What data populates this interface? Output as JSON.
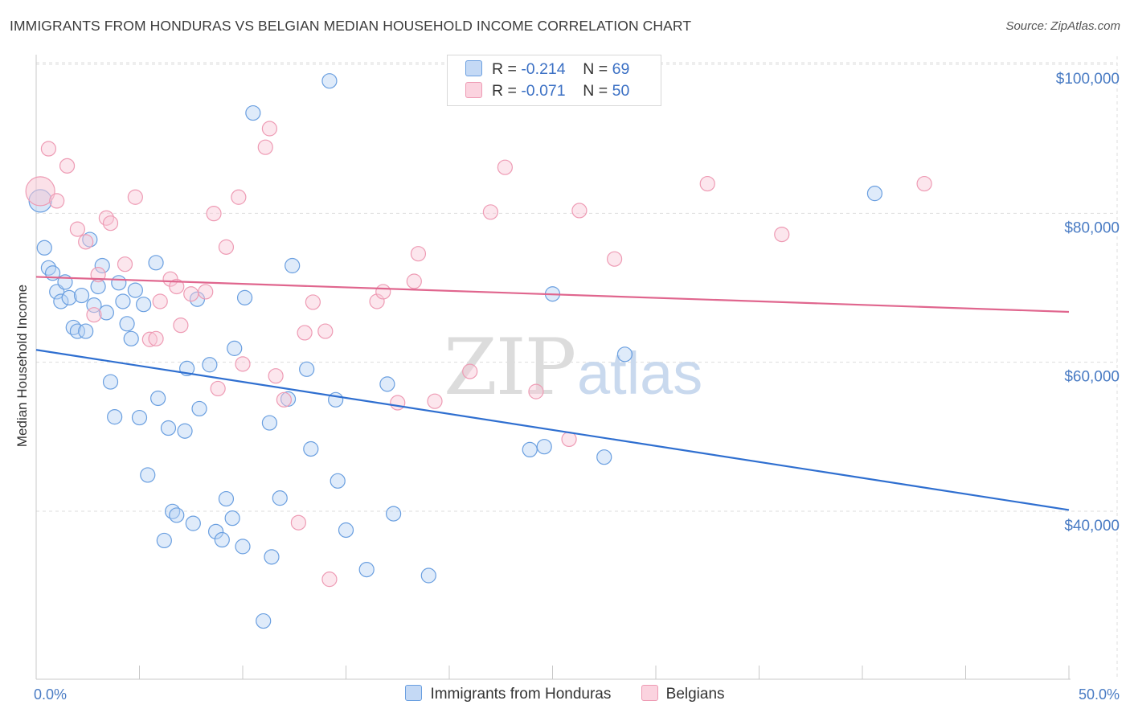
{
  "title": "IMMIGRANTS FROM HONDURAS VS BELGIAN MEDIAN HOUSEHOLD INCOME CORRELATION CHART",
  "source": "Source: ZipAtlas.com",
  "watermark": {
    "zip": "ZIP",
    "atlas": "atlas"
  },
  "legend_top": {
    "r_label": "R =",
    "n_label": "N =",
    "rows": [
      {
        "r": "-0.214",
        "n": "69"
      },
      {
        "r": "-0.071",
        "n": "50"
      }
    ]
  },
  "chart_data": {
    "type": "scatter",
    "title": "IMMIGRANTS FROM HONDURAS VS BELGIAN MEDIAN HOUSEHOLD INCOME CORRELATION CHART",
    "xlabel": "",
    "ylabel": "Median Household Income",
    "xlim": [
      0,
      50
    ],
    "ylim": [
      22000,
      103000
    ],
    "x_tick_labels": [
      "0.0%",
      "50.0%"
    ],
    "y_ticks": [
      40000,
      60000,
      80000,
      100000
    ],
    "y_tick_labels": [
      "$40,000",
      "$60,000",
      "$80,000",
      "$100,000"
    ],
    "grid": true,
    "legend_placement": "bottom",
    "series": [
      {
        "name": "Immigrants from Honduras",
        "color": "#6a9fe0",
        "fill": "#b8d2f3",
        "trend": {
          "x": [
            0,
            50
          ],
          "y": [
            63500,
            42000
          ],
          "color": "#2f6fd0"
        },
        "points": [
          [
            0.2,
            83500
          ],
          [
            0.4,
            77200
          ],
          [
            0.6,
            74500
          ],
          [
            0.8,
            73800
          ],
          [
            1.0,
            71300
          ],
          [
            1.2,
            70000
          ],
          [
            1.4,
            72600
          ],
          [
            1.6,
            70500
          ],
          [
            1.8,
            66500
          ],
          [
            2.0,
            66000
          ],
          [
            2.2,
            70800
          ],
          [
            2.4,
            66000
          ],
          [
            2.6,
            78300
          ],
          [
            2.8,
            69500
          ],
          [
            3.0,
            72000
          ],
          [
            3.2,
            74800
          ],
          [
            3.4,
            68500
          ],
          [
            3.6,
            59200
          ],
          [
            3.8,
            54500
          ],
          [
            4.0,
            72500
          ],
          [
            4.2,
            70000
          ],
          [
            4.4,
            67000
          ],
          [
            4.6,
            65000
          ],
          [
            4.8,
            71500
          ],
          [
            5.0,
            54400
          ],
          [
            5.2,
            69600
          ],
          [
            5.4,
            46700
          ],
          [
            5.8,
            75200
          ],
          [
            5.9,
            57000
          ],
          [
            6.2,
            37900
          ],
          [
            6.4,
            53000
          ],
          [
            6.6,
            41800
          ],
          [
            6.8,
            41300
          ],
          [
            7.2,
            52600
          ],
          [
            7.3,
            61000
          ],
          [
            7.6,
            40200
          ],
          [
            7.8,
            70300
          ],
          [
            7.9,
            55600
          ],
          [
            8.4,
            61500
          ],
          [
            8.7,
            39100
          ],
          [
            9.0,
            38000
          ],
          [
            9.2,
            43500
          ],
          [
            9.5,
            40900
          ],
          [
            9.6,
            63700
          ],
          [
            10.0,
            37100
          ],
          [
            10.1,
            70500
          ],
          [
            10.5,
            95300
          ],
          [
            11.0,
            27100
          ],
          [
            11.3,
            53700
          ],
          [
            11.4,
            35700
          ],
          [
            11.8,
            43600
          ],
          [
            12.2,
            56900
          ],
          [
            12.4,
            74800
          ],
          [
            13.1,
            60900
          ],
          [
            13.3,
            50200
          ],
          [
            14.5,
            56800
          ],
          [
            14.6,
            45900
          ],
          [
            15.0,
            39300
          ],
          [
            14.2,
            99600
          ],
          [
            16.0,
            34000
          ],
          [
            17.0,
            58900
          ],
          [
            17.3,
            41500
          ],
          [
            19.0,
            33200
          ],
          [
            23.9,
            50100
          ],
          [
            24.6,
            50500
          ],
          [
            25.0,
            71000
          ],
          [
            27.5,
            49100
          ],
          [
            28.5,
            62900
          ],
          [
            40.6,
            84500
          ]
        ]
      },
      {
        "name": "Belgians",
        "color": "#ee9bb4",
        "fill": "#f8c8d6",
        "trend": {
          "x": [
            0,
            50
          ],
          "y": [
            73300,
            68600
          ],
          "color": "#e0668e"
        },
        "points": [
          [
            0.2,
            84800
          ],
          [
            0.6,
            90500
          ],
          [
            1.0,
            83500
          ],
          [
            1.5,
            88200
          ],
          [
            2.0,
            79700
          ],
          [
            2.4,
            78000
          ],
          [
            2.8,
            68200
          ],
          [
            3.0,
            73600
          ],
          [
            3.4,
            81200
          ],
          [
            3.6,
            80500
          ],
          [
            4.3,
            75000
          ],
          [
            4.8,
            84000
          ],
          [
            5.5,
            64900
          ],
          [
            5.8,
            65000
          ],
          [
            6.0,
            70000
          ],
          [
            6.5,
            73000
          ],
          [
            6.8,
            72000
          ],
          [
            7.0,
            66800
          ],
          [
            7.5,
            71000
          ],
          [
            8.2,
            71300
          ],
          [
            8.6,
            81800
          ],
          [
            8.8,
            58300
          ],
          [
            9.2,
            77300
          ],
          [
            9.8,
            84000
          ],
          [
            10.0,
            61600
          ],
          [
            11.1,
            90700
          ],
          [
            11.3,
            93200
          ],
          [
            11.6,
            60000
          ],
          [
            12.0,
            56800
          ],
          [
            12.7,
            40300
          ],
          [
            13.0,
            65800
          ],
          [
            13.4,
            69900
          ],
          [
            14.0,
            66000
          ],
          [
            14.2,
            32700
          ],
          [
            16.5,
            70000
          ],
          [
            16.8,
            71300
          ],
          [
            17.5,
            56400
          ],
          [
            18.3,
            72700
          ],
          [
            18.5,
            76400
          ],
          [
            19.3,
            56600
          ],
          [
            21.0,
            60600
          ],
          [
            22.0,
            82000
          ],
          [
            22.7,
            88000
          ],
          [
            24.2,
            57900
          ],
          [
            25.8,
            51500
          ],
          [
            26.3,
            82200
          ],
          [
            28.0,
            75700
          ],
          [
            32.5,
            85800
          ],
          [
            36.1,
            79000
          ],
          [
            43.0,
            85800
          ]
        ]
      }
    ]
  }
}
